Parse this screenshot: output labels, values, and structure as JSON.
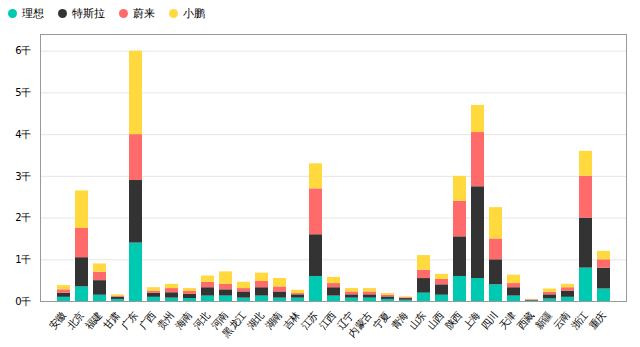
{
  "chart_data": {
    "type": "bar",
    "stacked": true,
    "categories": [
      "安徽",
      "北京",
      "福建",
      "甘肃",
      "广东",
      "广西",
      "贵州",
      "海南",
      "河北",
      "河南",
      "黑龙江",
      "湖北",
      "湖南",
      "吉林",
      "江苏",
      "江西",
      "辽宁",
      "内蒙古",
      "宁夏",
      "青海",
      "山东",
      "山西",
      "陕西",
      "上海",
      "四川",
      "天津",
      "西藏",
      "新疆",
      "云南",
      "浙江",
      "重庆"
    ],
    "series": [
      {
        "name": "理想",
        "color": "#00C9B1",
        "values": [
          100,
          350,
          150,
          50,
          1400,
          100,
          80,
          70,
          130,
          130,
          80,
          130,
          80,
          80,
          600,
          130,
          80,
          80,
          50,
          30,
          200,
          150,
          600,
          550,
          400,
          130,
          10,
          60,
          100,
          800,
          300
        ]
      },
      {
        "name": "特斯拉",
        "color": "#333333",
        "values": [
          100,
          700,
          350,
          50,
          1500,
          100,
          130,
          100,
          200,
          150,
          150,
          200,
          150,
          80,
          1000,
          200,
          80,
          80,
          60,
          40,
          350,
          250,
          950,
          2200,
          600,
          200,
          20,
          100,
          150,
          1200,
          500
        ]
      },
      {
        "name": "蔚来",
        "color": "#FF6B6B",
        "values": [
          80,
          700,
          200,
          30,
          1100,
          50,
          100,
          70,
          130,
          130,
          80,
          150,
          120,
          30,
          1100,
          100,
          70,
          70,
          40,
          20,
          200,
          130,
          850,
          1300,
          500,
          100,
          10,
          60,
          80,
          1000,
          200
        ]
      },
      {
        "name": "小鹏",
        "color": "#FFD93D",
        "values": [
          100,
          900,
          200,
          30,
          2000,
          80,
          100,
          70,
          150,
          300,
          150,
          200,
          200,
          80,
          600,
          150,
          80,
          80,
          40,
          20,
          350,
          120,
          600,
          650,
          750,
          200,
          10,
          80,
          80,
          600,
          200
        ]
      }
    ],
    "ylim": [
      0,
      6400
    ],
    "yticks": [
      {
        "value": 0,
        "label": "0千"
      },
      {
        "value": 1000,
        "label": "1千"
      },
      {
        "value": 2000,
        "label": "2千"
      },
      {
        "value": 3000,
        "label": "3千"
      },
      {
        "value": 4000,
        "label": "4千"
      },
      {
        "value": 5000,
        "label": "5千"
      },
      {
        "value": 6000,
        "label": "6千"
      }
    ],
    "grid": true,
    "legend": "upper left"
  }
}
